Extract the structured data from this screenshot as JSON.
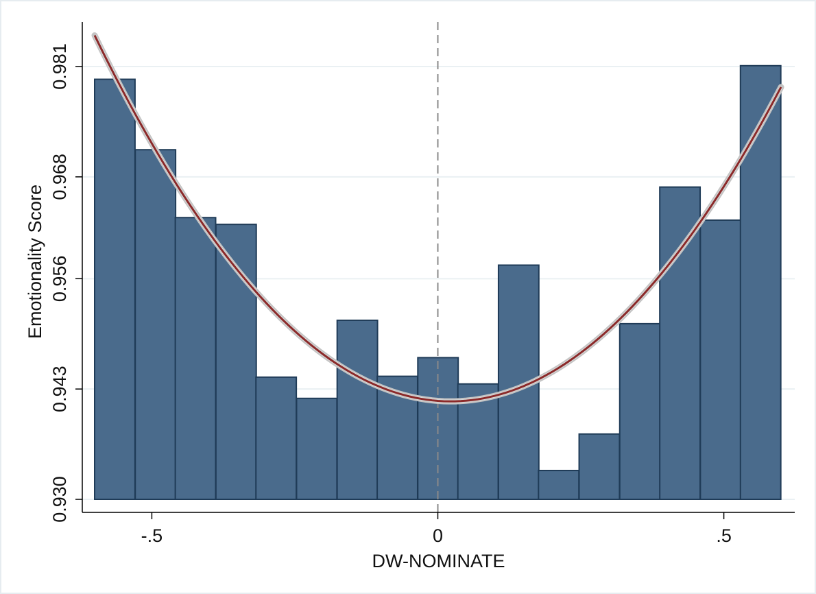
{
  "chart_data": {
    "type": "bar",
    "title": "",
    "xlabel": "DW-NOMINATE",
    "ylabel": "Emotionality Score",
    "xlim": [
      -0.6,
      0.6
    ],
    "ylim": [
      0.93,
      0.9865
    ],
    "x_ticks": [
      {
        "value": -0.5,
        "label": "-.5"
      },
      {
        "value": 0,
        "label": "0"
      },
      {
        "value": 0.5,
        "label": ".5"
      }
    ],
    "y_ticks": [
      {
        "value": 0.93,
        "label": "0.930"
      },
      {
        "value": 0.943,
        "label": "0.943"
      },
      {
        "value": 0.956,
        "label": "0.956"
      },
      {
        "value": 0.968,
        "label": "0.968"
      },
      {
        "value": 0.981,
        "label": "0.981"
      }
    ],
    "bin_width": 0.0706,
    "bins": [
      {
        "x0": -0.6,
        "y": 0.9795
      },
      {
        "x0": -0.529,
        "y": 0.9712
      },
      {
        "x0": -0.459,
        "y": 0.9632
      },
      {
        "x0": -0.388,
        "y": 0.9624
      },
      {
        "x0": -0.318,
        "y": 0.9444
      },
      {
        "x0": -0.247,
        "y": 0.9419
      },
      {
        "x0": -0.176,
        "y": 0.9511
      },
      {
        "x0": -0.106,
        "y": 0.9445
      },
      {
        "x0": -0.035,
        "y": 0.9467
      },
      {
        "x0": 0.035,
        "y": 0.9436
      },
      {
        "x0": 0.106,
        "y": 0.9576
      },
      {
        "x0": 0.176,
        "y": 0.9334
      },
      {
        "x0": 0.247,
        "y": 0.9377
      },
      {
        "x0": 0.318,
        "y": 0.9507
      },
      {
        "x0": 0.388,
        "y": 0.9668
      },
      {
        "x0": 0.459,
        "y": 0.9629
      },
      {
        "x0": 0.529,
        "y": 0.9811
      }
    ],
    "fit_line": {
      "type": "quadratic",
      "x_range": [
        -0.6,
        0.6
      ],
      "points": [
        {
          "x": -0.6,
          "y": 0.9841
        },
        {
          "x": -0.45,
          "y": 0.967
        },
        {
          "x": -0.3,
          "y": 0.9535
        },
        {
          "x": -0.15,
          "y": 0.9452
        },
        {
          "x": 0.0,
          "y": 0.9411
        },
        {
          "x": 0.15,
          "y": 0.9425
        },
        {
          "x": 0.3,
          "y": 0.9501
        },
        {
          "x": 0.45,
          "y": 0.9628
        },
        {
          "x": 0.6,
          "y": 0.9782
        }
      ],
      "color": "#8b2a2a",
      "band_color": "#c4c4c4"
    },
    "reference_line": {
      "x": 0,
      "style": "dashed",
      "color": "#8a8a8a"
    },
    "bar_color": "#4a6b8c",
    "bar_edge_color": "#1f3b57",
    "grid": true,
    "legend": "none"
  }
}
